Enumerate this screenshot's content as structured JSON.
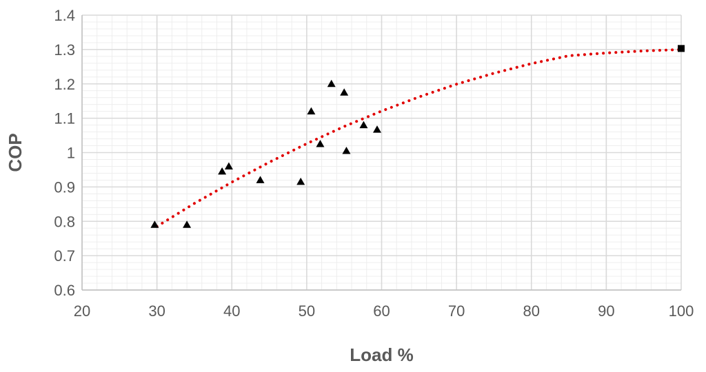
{
  "chart_data": {
    "type": "scatter",
    "title": "",
    "xlabel": "Load %",
    "ylabel": "COP",
    "xlim": [
      20,
      100
    ],
    "ylim": [
      0.6,
      1.4
    ],
    "x_ticks": [
      20,
      30,
      40,
      50,
      60,
      70,
      80,
      90,
      100
    ],
    "y_ticks": [
      0.6,
      0.7,
      0.8,
      0.9,
      1.0,
      1.1,
      1.2,
      1.3,
      1.4
    ],
    "x_tick_labels": [
      "20",
      "30",
      "40",
      "50",
      "60",
      "70",
      "80",
      "90",
      "100"
    ],
    "y_tick_labels": [
      "0.6",
      "0.7",
      "0.8",
      "0.9",
      "1",
      "1.1",
      "1.2",
      "1.3",
      "1.4"
    ],
    "grid": true,
    "minor_grid": true,
    "legend": "none",
    "series": [
      {
        "marker": "triangle",
        "color": "#000000",
        "points": [
          [
            29.7,
            0.79
          ],
          [
            34.0,
            0.79
          ],
          [
            38.7,
            0.945
          ],
          [
            39.6,
            0.96
          ],
          [
            43.8,
            0.92
          ],
          [
            49.2,
            0.915
          ],
          [
            50.6,
            1.12
          ],
          [
            51.8,
            1.025
          ],
          [
            53.3,
            1.2
          ],
          [
            55.0,
            1.175
          ],
          [
            55.3,
            1.005
          ],
          [
            57.6,
            1.08
          ],
          [
            59.4,
            1.067
          ]
        ]
      },
      {
        "marker": "square",
        "color": "#000000",
        "points": [
          [
            100,
            1.303
          ]
        ]
      }
    ],
    "trendline": {
      "type": "polynomial",
      "style": "dotted",
      "color": "#e00000",
      "points": [
        [
          30,
          0.785
        ],
        [
          35,
          0.852
        ],
        [
          40,
          0.914
        ],
        [
          45,
          0.972
        ],
        [
          50,
          1.026
        ],
        [
          55,
          1.076
        ],
        [
          60,
          1.121
        ],
        [
          65,
          1.162
        ],
        [
          70,
          1.199
        ],
        [
          75,
          1.231
        ],
        [
          80,
          1.259
        ],
        [
          85,
          1.282
        ],
        [
          90,
          1.29
        ],
        [
          95,
          1.296
        ],
        [
          100,
          1.3
        ]
      ]
    }
  }
}
